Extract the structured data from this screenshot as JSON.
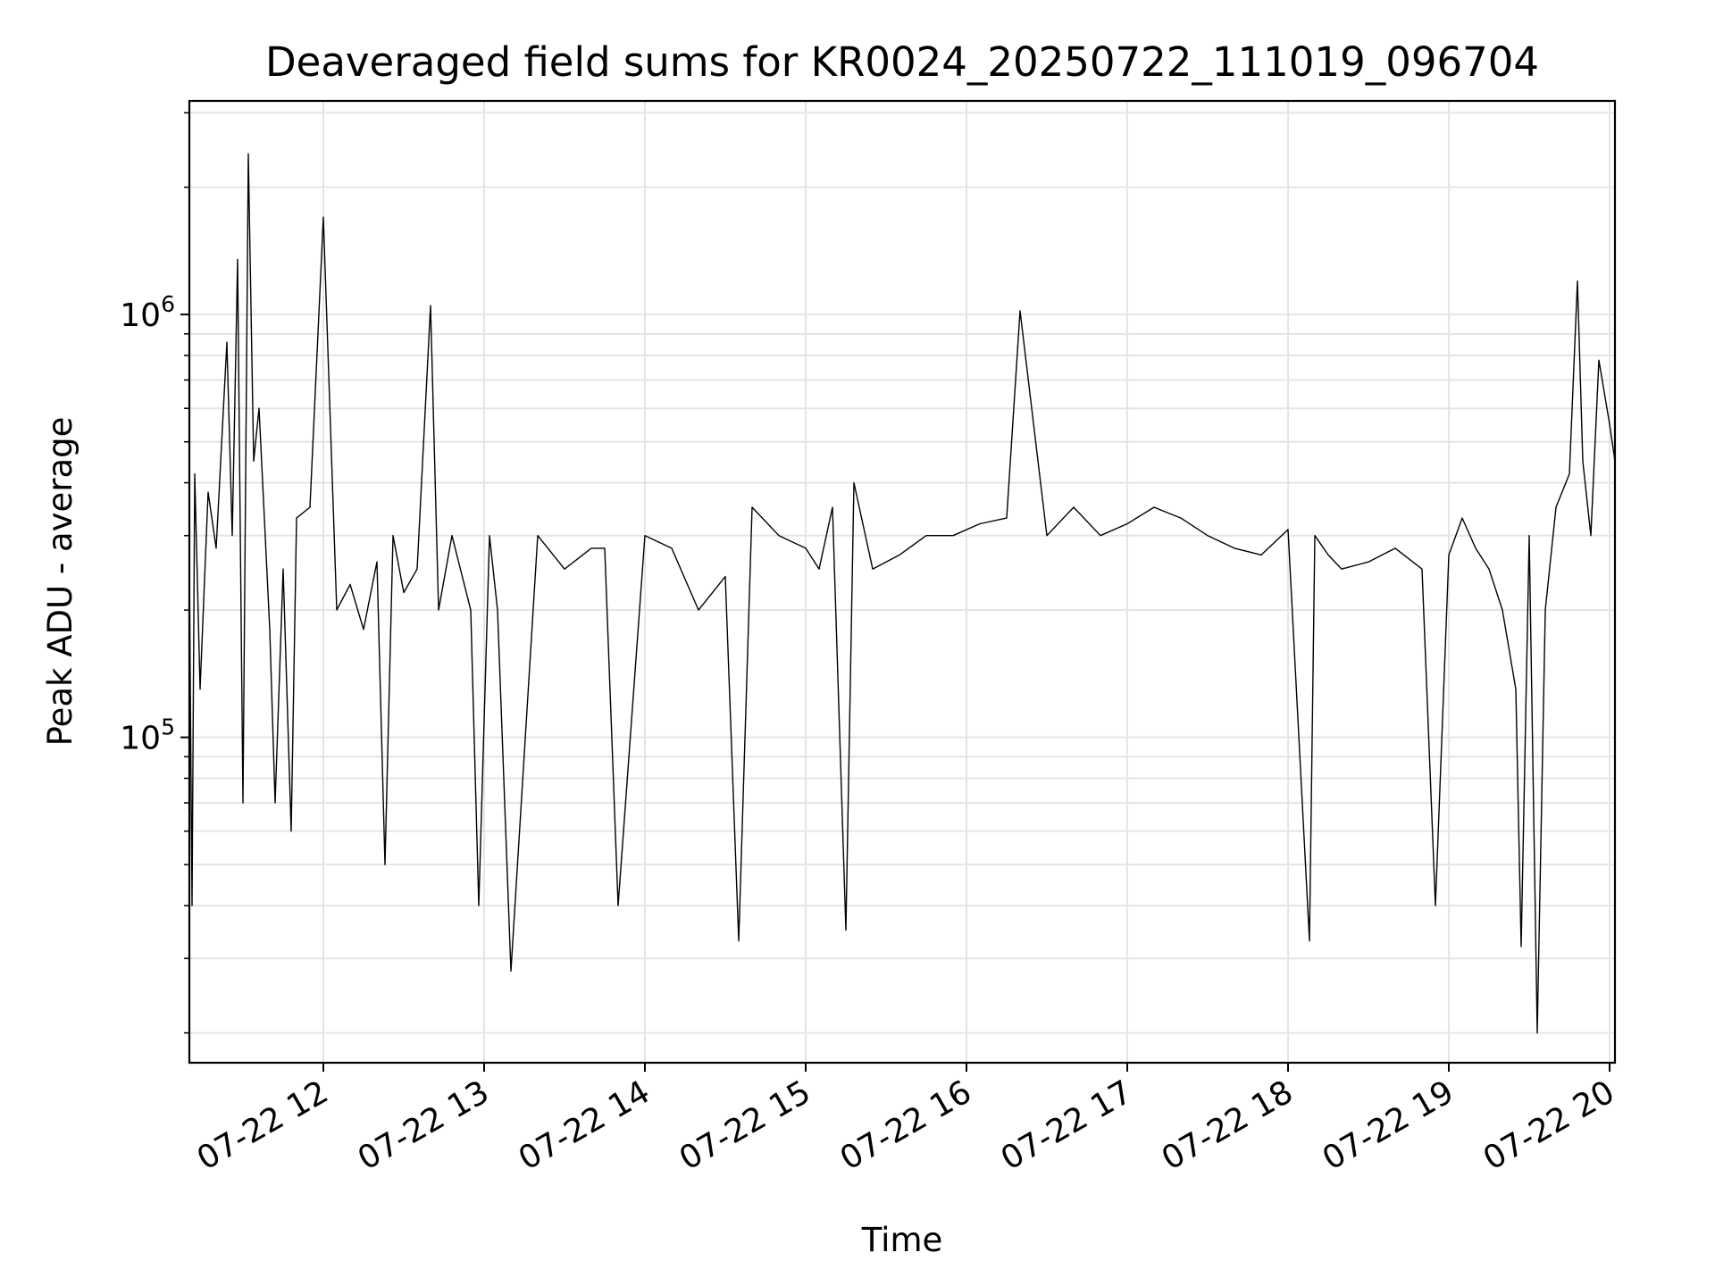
{
  "chart_data": {
    "type": "line",
    "title": "Deaveraged field sums for KR0024_20250722_111019_096704",
    "xlabel": "Time",
    "ylabel": "Peak ADU - average",
    "yscale": "log",
    "xlim": [
      "2025-07-22T11:10",
      "2025-07-22T20:02"
    ],
    "ylim": [
      17000,
      3200000
    ],
    "grid": true,
    "x_ticks": [
      {
        "label": "07-22 12",
        "value": "2025-07-22T12:00"
      },
      {
        "label": "07-22 13",
        "value": "2025-07-22T13:00"
      },
      {
        "label": "07-22 14",
        "value": "2025-07-22T14:00"
      },
      {
        "label": "07-22 15",
        "value": "2025-07-22T15:00"
      },
      {
        "label": "07-22 16",
        "value": "2025-07-22T16:00"
      },
      {
        "label": "07-22 17",
        "value": "2025-07-22T17:00"
      },
      {
        "label": "07-22 18",
        "value": "2025-07-22T18:00"
      },
      {
        "label": "07-22 19",
        "value": "2025-07-22T19:00"
      },
      {
        "label": "07-22 20",
        "value": "2025-07-22T20:00"
      }
    ],
    "y_ticks": [
      {
        "base": "10",
        "exp": "5",
        "value": 100000
      },
      {
        "base": "10",
        "exp": "6",
        "value": 1000000
      }
    ],
    "line_color": "#000000",
    "x": [
      "2025-07-22T11:10",
      "2025-07-22T11:11",
      "2025-07-22T11:12",
      "2025-07-22T11:14",
      "2025-07-22T11:17",
      "2025-07-22T11:20",
      "2025-07-22T11:24",
      "2025-07-22T11:26",
      "2025-07-22T11:28",
      "2025-07-22T11:30",
      "2025-07-22T11:32",
      "2025-07-22T11:34",
      "2025-07-22T11:36",
      "2025-07-22T11:40",
      "2025-07-22T11:42",
      "2025-07-22T11:45",
      "2025-07-22T11:48",
      "2025-07-22T11:50",
      "2025-07-22T11:55",
      "2025-07-22T12:00",
      "2025-07-22T12:05",
      "2025-07-22T12:10",
      "2025-07-22T12:15",
      "2025-07-22T12:20",
      "2025-07-22T12:23",
      "2025-07-22T12:26",
      "2025-07-22T12:30",
      "2025-07-22T12:35",
      "2025-07-22T12:40",
      "2025-07-22T12:43",
      "2025-07-22T12:48",
      "2025-07-22T12:55",
      "2025-07-22T12:58",
      "2025-07-22T13:02",
      "2025-07-22T13:05",
      "2025-07-22T13:10",
      "2025-07-22T13:20",
      "2025-07-22T13:30",
      "2025-07-22T13:40",
      "2025-07-22T13:45",
      "2025-07-22T13:50",
      "2025-07-22T14:00",
      "2025-07-22T14:10",
      "2025-07-22T14:20",
      "2025-07-22T14:30",
      "2025-07-22T14:35",
      "2025-07-22T14:40",
      "2025-07-22T14:50",
      "2025-07-22T15:00",
      "2025-07-22T15:05",
      "2025-07-22T15:10",
      "2025-07-22T15:15",
      "2025-07-22T15:18",
      "2025-07-22T15:25",
      "2025-07-22T15:35",
      "2025-07-22T15:45",
      "2025-07-22T15:55",
      "2025-07-22T16:05",
      "2025-07-22T16:15",
      "2025-07-22T16:20",
      "2025-07-22T16:30",
      "2025-07-22T16:40",
      "2025-07-22T16:50",
      "2025-07-22T17:00",
      "2025-07-22T17:10",
      "2025-07-22T17:20",
      "2025-07-22T17:30",
      "2025-07-22T17:40",
      "2025-07-22T17:50",
      "2025-07-22T18:00",
      "2025-07-22T18:08",
      "2025-07-22T18:10",
      "2025-07-22T18:15",
      "2025-07-22T18:20",
      "2025-07-22T18:30",
      "2025-07-22T18:40",
      "2025-07-22T18:50",
      "2025-07-22T18:55",
      "2025-07-22T19:00",
      "2025-07-22T19:05",
      "2025-07-22T19:10",
      "2025-07-22T19:15",
      "2025-07-22T19:20",
      "2025-07-22T19:25",
      "2025-07-22T19:27",
      "2025-07-22T19:30",
      "2025-07-22T19:33",
      "2025-07-22T19:36",
      "2025-07-22T19:40",
      "2025-07-22T19:45",
      "2025-07-22T19:48",
      "2025-07-22T19:50",
      "2025-07-22T19:53",
      "2025-07-22T19:56",
      "2025-07-22T20:00",
      "2025-07-22T20:02"
    ],
    "y": [
      250000,
      40000,
      420000,
      130000,
      380000,
      280000,
      860000,
      300000,
      1350000,
      70000,
      2400000,
      450000,
      600000,
      180000,
      70000,
      250000,
      60000,
      330000,
      350000,
      1700000,
      200000,
      230000,
      180000,
      260000,
      50000,
      300000,
      220000,
      250000,
      1050000,
      200000,
      300000,
      200000,
      40000,
      300000,
      200000,
      28000,
      300000,
      250000,
      280000,
      280000,
      40000,
      300000,
      280000,
      200000,
      240000,
      33000,
      350000,
      300000,
      280000,
      250000,
      350000,
      35000,
      400000,
      250000,
      270000,
      300000,
      300000,
      320000,
      330000,
      1020000,
      300000,
      350000,
      300000,
      320000,
      350000,
      330000,
      300000,
      280000,
      270000,
      310000,
      33000,
      300000,
      270000,
      250000,
      260000,
      280000,
      250000,
      40000,
      270000,
      330000,
      280000,
      250000,
      200000,
      130000,
      32000,
      300000,
      20000,
      200000,
      350000,
      420000,
      1200000,
      450000,
      300000,
      780000,
      550000,
      450000
    ]
  }
}
